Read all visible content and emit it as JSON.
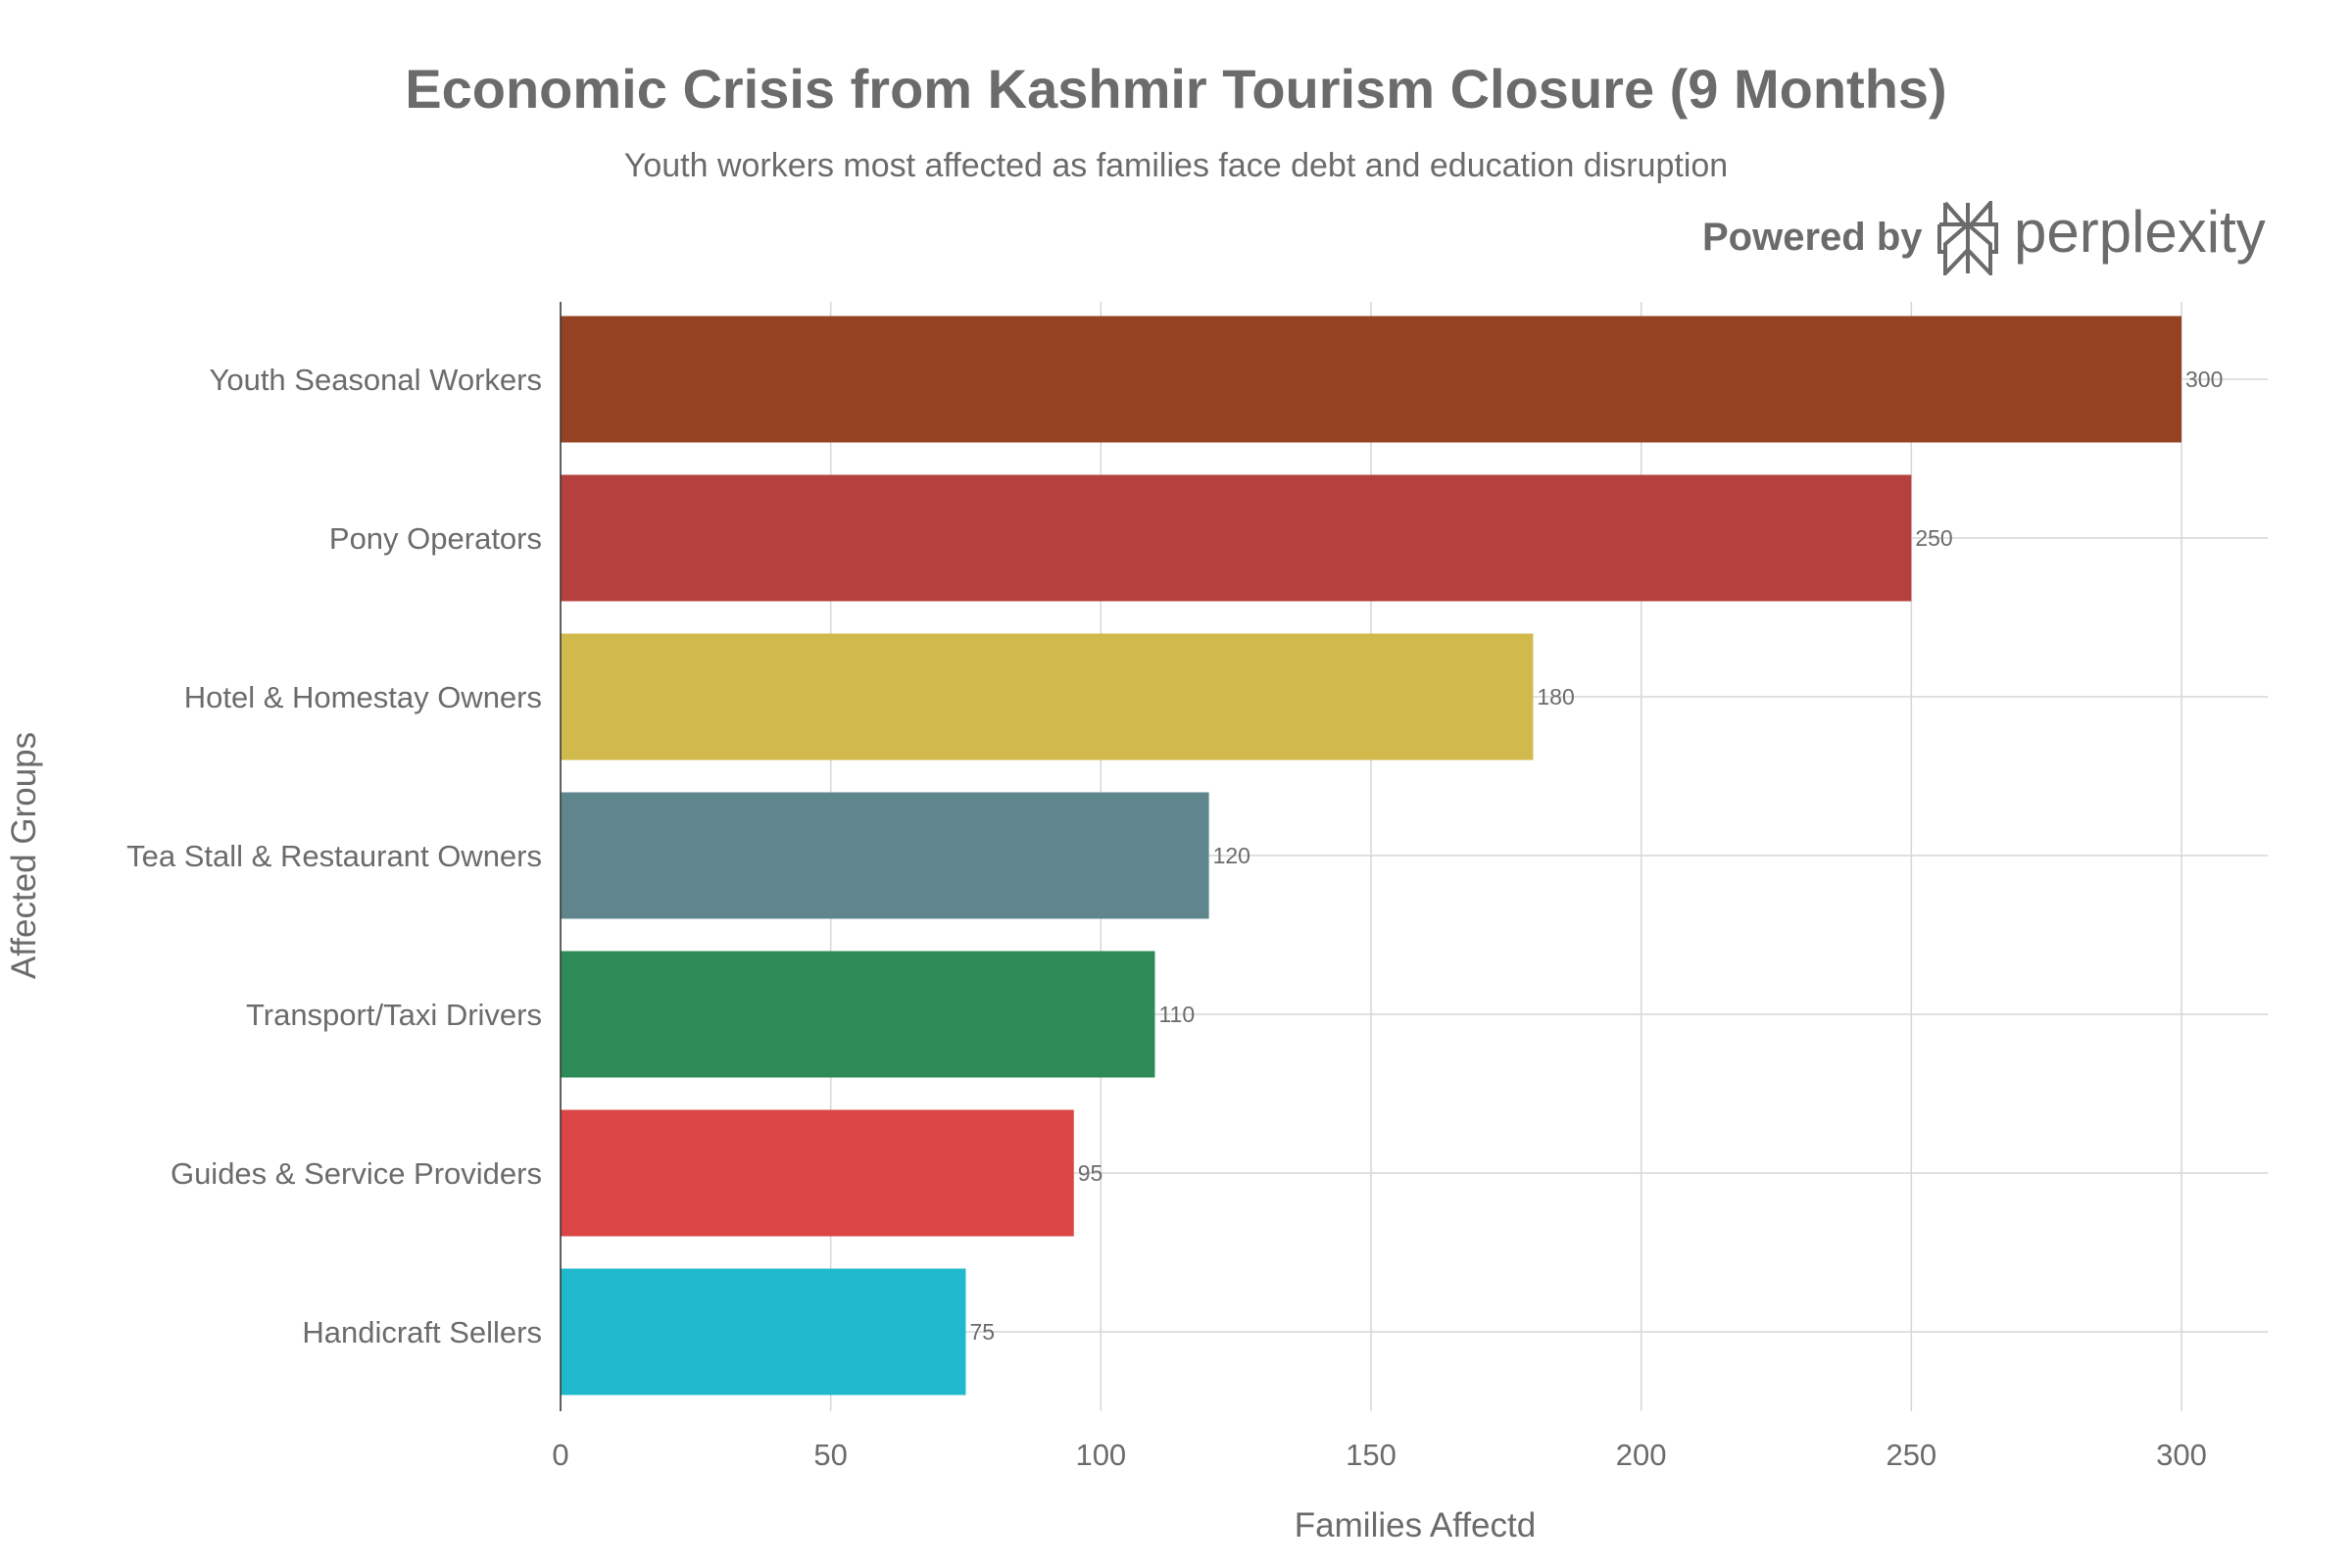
{
  "header": {
    "powered_by": "Powered by",
    "brand": "perplexity"
  },
  "chart_data": {
    "type": "bar",
    "orientation": "horizontal",
    "title": "Economic Crisis from Kashmir Tourism Closure (9 Months)",
    "subtitle": "Youth workers most affected as families face debt and education disruption",
    "xlabel": "Families Affectd",
    "ylabel": "Affected Groups",
    "xlim": [
      0,
      316
    ],
    "xticks": [
      0,
      50,
      100,
      150,
      200,
      250,
      300
    ],
    "grid": true,
    "categories": [
      "Youth Seasonal Workers",
      "Pony Operators",
      "Hotel & Homestay Owners",
      "Tea Stall & Restaurant Owners",
      "Transport/Taxi Drivers",
      "Guides & Service Providers",
      "Handicraft Sellers"
    ],
    "values": [
      300,
      250,
      180,
      120,
      110,
      95,
      75
    ],
    "colors": [
      "#954223",
      "#B6403D",
      "#D2B94B",
      "#5E868C",
      "#2E8B57",
      "#DB4545",
      "#1FB8CD"
    ]
  }
}
